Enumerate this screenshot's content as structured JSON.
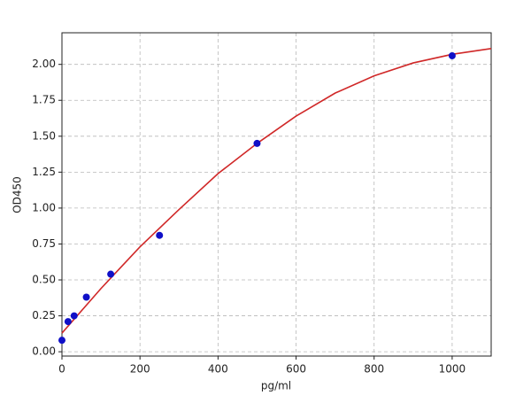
{
  "chart_data": {
    "type": "scatter",
    "xlabel": "pg/ml",
    "ylabel": "OD450",
    "xlim": [
      0,
      1100
    ],
    "ylim": [
      -0.03,
      2.22
    ],
    "xticks": [
      0,
      200,
      400,
      600,
      800,
      1000
    ],
    "yticks": [
      {
        "value": 0,
        "label": "0.00"
      },
      {
        "value": 0.25,
        "label": "0.25"
      },
      {
        "value": 0.5,
        "label": "0.50"
      },
      {
        "value": 0.75,
        "label": "0.75"
      },
      {
        "value": 1,
        "label": "1.00"
      },
      {
        "value": 1.25,
        "label": "1.25"
      },
      {
        "value": 1.5,
        "label": "1.50"
      },
      {
        "value": 1.75,
        "label": "1.75"
      },
      {
        "value": 2,
        "label": "2.00"
      }
    ],
    "grid": true,
    "points": {
      "color": "#1010c8",
      "x": [
        0,
        15.6,
        31.25,
        62.5,
        125,
        250,
        500,
        1000
      ],
      "values": [
        0.08,
        0.21,
        0.25,
        0.38,
        0.54,
        0.81,
        1.45,
        2.06
      ]
    },
    "curve": {
      "color": "#d02828",
      "x": [
        0,
        100,
        200,
        300,
        400,
        500,
        600,
        700,
        800,
        900,
        1000,
        1100
      ],
      "values": [
        0.13,
        0.44,
        0.73,
        0.99,
        1.24,
        1.45,
        1.64,
        1.8,
        1.92,
        2.01,
        2.07,
        2.11
      ]
    }
  }
}
